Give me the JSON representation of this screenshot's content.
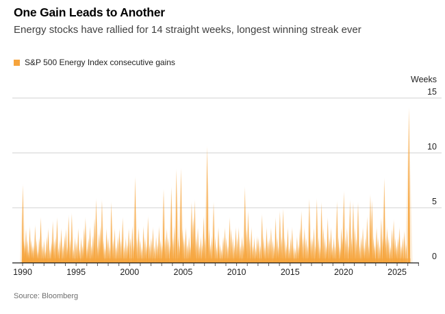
{
  "header": {
    "title": "One Gain Leads to Another",
    "subtitle": "Energy stocks have rallied for 14 straight weeks, longest winning streak ever"
  },
  "legend": {
    "label": "S&P 500 Energy Index consecutive gains",
    "swatch_color": "#F6A43C"
  },
  "source": "Source: Bloomberg",
  "colors": {
    "accent": "#F6A43C",
    "grid": "#d2d2d2",
    "axis": "#1a1a1a",
    "tick": "#555555",
    "text": "#1f1f1f",
    "muted": "#6e6e6e"
  },
  "chart_data": {
    "type": "bar",
    "title": "One Gain Leads to Another",
    "subtitle": "Energy stocks have rallied for 14 straight weeks, longest winning streak ever",
    "series_name": "S&P 500 Energy Index consecutive gains",
    "unit_label": "Weeks",
    "ylabel": "Weeks",
    "xlabel": "",
    "ylim": [
      0,
      15
    ],
    "yticks": [
      0,
      5,
      10,
      15
    ],
    "xticks_labeled": [
      1990,
      1995,
      2000,
      2005,
      2010,
      2015,
      2020,
      2025
    ],
    "xtick_minor_start": 1990,
    "xtick_minor_end": 2027,
    "x_range": [
      1989.0,
      2027.3
    ],
    "grid": true,
    "legend_position": "top-left",
    "highlight": {
      "year": 2026.1,
      "weeks": 14,
      "note": "longest winning streak ever"
    },
    "spikes": [
      [
        1990.02,
        7
      ],
      [
        1990.12,
        2
      ],
      [
        1990.22,
        1.5
      ],
      [
        1990.32,
        3
      ],
      [
        1990.45,
        2
      ],
      [
        1990.55,
        1
      ],
      [
        1990.68,
        3.2
      ],
      [
        1990.8,
        2
      ],
      [
        1990.92,
        1.5
      ],
      [
        1991.05,
        1.5
      ],
      [
        1991.17,
        3.3
      ],
      [
        1991.3,
        2
      ],
      [
        1991.42,
        1
      ],
      [
        1991.55,
        2.2
      ],
      [
        1991.7,
        4
      ],
      [
        1991.85,
        1.5
      ],
      [
        1992.0,
        2
      ],
      [
        1992.12,
        1
      ],
      [
        1992.25,
        2.3
      ],
      [
        1992.4,
        3
      ],
      [
        1992.55,
        1.2
      ],
      [
        1992.7,
        1.8
      ],
      [
        1992.82,
        3.7
      ],
      [
        1992.95,
        2
      ],
      [
        1993.1,
        2.2
      ],
      [
        1993.22,
        4
      ],
      [
        1993.35,
        1.3
      ],
      [
        1993.5,
        2
      ],
      [
        1993.62,
        3
      ],
      [
        1993.78,
        1.5
      ],
      [
        1993.92,
        2.4
      ],
      [
        1994.05,
        3
      ],
      [
        1994.18,
        1.4
      ],
      [
        1994.3,
        4.2
      ],
      [
        1994.45,
        2
      ],
      [
        1994.6,
        4.4
      ],
      [
        1994.75,
        1.2
      ],
      [
        1994.9,
        2.2
      ],
      [
        1995.05,
        1.8
      ],
      [
        1995.2,
        3
      ],
      [
        1995.32,
        1.2
      ],
      [
        1995.48,
        2.2
      ],
      [
        1995.62,
        1.5
      ],
      [
        1995.75,
        3.1
      ],
      [
        1995.88,
        4
      ],
      [
        1996.02,
        1.3
      ],
      [
        1996.15,
        2.2
      ],
      [
        1996.3,
        3.2
      ],
      [
        1996.45,
        1.5
      ],
      [
        1996.58,
        2.4
      ],
      [
        1996.72,
        4
      ],
      [
        1996.88,
        5.7
      ],
      [
        1997.02,
        1.5
      ],
      [
        1997.15,
        2.6
      ],
      [
        1997.28,
        3.2
      ],
      [
        1997.42,
        5.6
      ],
      [
        1997.55,
        2
      ],
      [
        1997.7,
        1.3
      ],
      [
        1997.85,
        3
      ],
      [
        1998.0,
        2.2
      ],
      [
        1998.15,
        1.4
      ],
      [
        1998.3,
        5.4
      ],
      [
        1998.45,
        2
      ],
      [
        1998.6,
        3
      ],
      [
        1998.75,
        1.4
      ],
      [
        1998.9,
        2.3
      ],
      [
        1999.05,
        3
      ],
      [
        1999.2,
        2
      ],
      [
        1999.35,
        4
      ],
      [
        1999.5,
        1.4
      ],
      [
        1999.65,
        2.2
      ],
      [
        1999.8,
        1.6
      ],
      [
        1999.92,
        3
      ],
      [
        2000.08,
        2.2
      ],
      [
        2000.25,
        3.2
      ],
      [
        2000.4,
        1.6
      ],
      [
        2000.52,
        7.7
      ],
      [
        2000.68,
        2.2
      ],
      [
        2000.85,
        3.1
      ],
      [
        2001.0,
        2
      ],
      [
        2001.15,
        1.3
      ],
      [
        2001.3,
        3.2
      ],
      [
        2001.45,
        2.2
      ],
      [
        2001.6,
        1.5
      ],
      [
        2001.72,
        4.1
      ],
      [
        2001.88,
        1.6
      ],
      [
        2002.02,
        2.2
      ],
      [
        2002.18,
        3.1
      ],
      [
        2002.32,
        1.4
      ],
      [
        2002.48,
        2.3
      ],
      [
        2002.62,
        1.6
      ],
      [
        2002.75,
        3.2
      ],
      [
        2002.9,
        2
      ],
      [
        2003.05,
        1.6
      ],
      [
        2003.18,
        6.6
      ],
      [
        2003.32,
        2.2
      ],
      [
        2003.48,
        3
      ],
      [
        2003.62,
        2.2
      ],
      [
        2003.78,
        1.5
      ],
      [
        2003.9,
        6.8
      ],
      [
        2004.05,
        2.2
      ],
      [
        2004.2,
        3.2
      ],
      [
        2004.38,
        8.4
      ],
      [
        2004.55,
        2.2
      ],
      [
        2004.68,
        1.5
      ],
      [
        2004.8,
        8.5
      ],
      [
        2004.94,
        3
      ],
      [
        2005.08,
        2.2
      ],
      [
        2005.25,
        3.1
      ],
      [
        2005.4,
        1.6
      ],
      [
        2005.55,
        2.3
      ],
      [
        2005.68,
        1.4
      ],
      [
        2005.8,
        5.4
      ],
      [
        2005.94,
        4
      ],
      [
        2006.08,
        5.6
      ],
      [
        2006.22,
        2.2
      ],
      [
        2006.38,
        3.1
      ],
      [
        2006.52,
        1.5
      ],
      [
        2006.65,
        2.3
      ],
      [
        2006.8,
        1.6
      ],
      [
        2006.92,
        4.1
      ],
      [
        2007.06,
        2.2
      ],
      [
        2007.25,
        10.5
      ],
      [
        2007.42,
        3
      ],
      [
        2007.55,
        1.6
      ],
      [
        2007.7,
        2.3
      ],
      [
        2007.85,
        5.4
      ],
      [
        2008.0,
        2.2
      ],
      [
        2008.15,
        1.4
      ],
      [
        2008.3,
        3.1
      ],
      [
        2008.45,
        1.6
      ],
      [
        2008.6,
        1.2
      ],
      [
        2008.75,
        2.3
      ],
      [
        2008.9,
        3.1
      ],
      [
        2009.05,
        2.2
      ],
      [
        2009.2,
        1.5
      ],
      [
        2009.35,
        4
      ],
      [
        2009.5,
        3
      ],
      [
        2009.65,
        2.2
      ],
      [
        2009.8,
        1.5
      ],
      [
        2009.92,
        3.1
      ],
      [
        2010.06,
        2.2
      ],
      [
        2010.2,
        3.1
      ],
      [
        2010.35,
        1.5
      ],
      [
        2010.5,
        2.3
      ],
      [
        2010.65,
        1.6
      ],
      [
        2010.78,
        6.8
      ],
      [
        2010.92,
        3
      ],
      [
        2011.08,
        4.6
      ],
      [
        2011.22,
        2.2
      ],
      [
        2011.38,
        3.1
      ],
      [
        2011.52,
        1.5
      ],
      [
        2011.65,
        2.2
      ],
      [
        2011.8,
        1.3
      ],
      [
        2011.92,
        2.3
      ],
      [
        2012.06,
        2.2
      ],
      [
        2012.22,
        1.5
      ],
      [
        2012.38,
        4.3
      ],
      [
        2012.52,
        2.2
      ],
      [
        2012.65,
        1.4
      ],
      [
        2012.8,
        3.1
      ],
      [
        2012.94,
        2
      ],
      [
        2013.08,
        2.2
      ],
      [
        2013.22,
        3.1
      ],
      [
        2013.38,
        2
      ],
      [
        2013.52,
        1.5
      ],
      [
        2013.65,
        4
      ],
      [
        2013.8,
        2.2
      ],
      [
        2013.92,
        1.4
      ],
      [
        2014.05,
        4.6
      ],
      [
        2014.2,
        2.2
      ],
      [
        2014.35,
        4.8
      ],
      [
        2014.5,
        2.2
      ],
      [
        2014.65,
        1.5
      ],
      [
        2014.78,
        3.1
      ],
      [
        2014.92,
        1.3
      ],
      [
        2015.06,
        2.2
      ],
      [
        2015.2,
        3.1
      ],
      [
        2015.35,
        1.4
      ],
      [
        2015.5,
        1.2
      ],
      [
        2015.65,
        2.3
      ],
      [
        2015.8,
        1.5
      ],
      [
        2015.92,
        3.1
      ],
      [
        2016.05,
        4.6
      ],
      [
        2016.2,
        2.2
      ],
      [
        2016.35,
        3.1
      ],
      [
        2016.5,
        2.2
      ],
      [
        2016.65,
        1.5
      ],
      [
        2016.8,
        5.7
      ],
      [
        2016.94,
        2.2
      ],
      [
        2017.08,
        2.2
      ],
      [
        2017.22,
        3.1
      ],
      [
        2017.38,
        1.5
      ],
      [
        2017.5,
        5.7
      ],
      [
        2017.65,
        2.2
      ],
      [
        2017.8,
        1.4
      ],
      [
        2017.94,
        5.4
      ],
      [
        2018.1,
        3.1
      ],
      [
        2018.25,
        2.2
      ],
      [
        2018.4,
        1.5
      ],
      [
        2018.52,
        4
      ],
      [
        2018.68,
        2.2
      ],
      [
        2018.82,
        3.1
      ],
      [
        2018.94,
        1.4
      ],
      [
        2019.08,
        2.2
      ],
      [
        2019.22,
        1.5
      ],
      [
        2019.38,
        5.5
      ],
      [
        2019.52,
        2.2
      ],
      [
        2019.68,
        1.4
      ],
      [
        2019.8,
        3.1
      ],
      [
        2019.92,
        2.2
      ],
      [
        2020.02,
        6.4
      ],
      [
        2020.18,
        2.2
      ],
      [
        2020.32,
        3.1
      ],
      [
        2020.48,
        1.5
      ],
      [
        2020.6,
        5.6
      ],
      [
        2020.75,
        2.2
      ],
      [
        2020.9,
        5.4
      ],
      [
        2021.05,
        3.1
      ],
      [
        2021.2,
        2.2
      ],
      [
        2021.35,
        5.4
      ],
      [
        2021.5,
        1.5
      ],
      [
        2021.65,
        2.3
      ],
      [
        2021.8,
        3.1
      ],
      [
        2021.92,
        1.4
      ],
      [
        2022.05,
        2.2
      ],
      [
        2022.2,
        4.1
      ],
      [
        2022.35,
        1.5
      ],
      [
        2022.5,
        6.1
      ],
      [
        2022.65,
        5.6
      ],
      [
        2022.8,
        2.2
      ],
      [
        2022.92,
        1.5
      ],
      [
        2023.08,
        3.1
      ],
      [
        2023.22,
        2.2
      ],
      [
        2023.38,
        1.5
      ],
      [
        2023.52,
        4
      ],
      [
        2023.68,
        2.2
      ],
      [
        2023.8,
        7.6
      ],
      [
        2023.94,
        2.2
      ],
      [
        2024.08,
        3.1
      ],
      [
        2024.22,
        2.2
      ],
      [
        2024.38,
        1.4
      ],
      [
        2024.52,
        3
      ],
      [
        2024.68,
        3.8
      ],
      [
        2024.82,
        2.2
      ],
      [
        2024.94,
        1.5
      ],
      [
        2025.08,
        2.2
      ],
      [
        2025.22,
        3.1
      ],
      [
        2025.38,
        1.5
      ],
      [
        2025.52,
        2.2
      ],
      [
        2025.68,
        2.8
      ],
      [
        2025.85,
        1.6
      ],
      [
        2026.1,
        14
      ]
    ]
  }
}
